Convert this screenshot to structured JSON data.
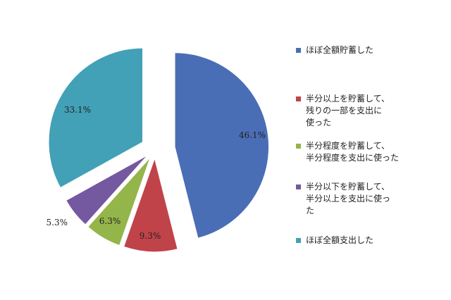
{
  "chart_data": {
    "type": "pie",
    "title": "",
    "categories": [
      "ほぼ全額貯蓄した",
      "半分以上を貯蓄して、\n残りの一部を支出に\n使った",
      "半分程度を貯蓄して、\n半分程度を支出に使った",
      "半分以下を貯蓄して、\n半分以上を支出に使っ\nた",
      "ほぼ全額支出した"
    ],
    "values": [
      46.1,
      9.3,
      6.3,
      5.3,
      33.1
    ],
    "labels": [
      "46.1%",
      "9.3%",
      "6.3%",
      "5.3%",
      "33.1%"
    ],
    "colors": [
      "#4a6eb5",
      "#c0434a",
      "#94b54a",
      "#7458a0",
      "#42a0b7"
    ],
    "legend_position": "right",
    "exploded": true
  }
}
